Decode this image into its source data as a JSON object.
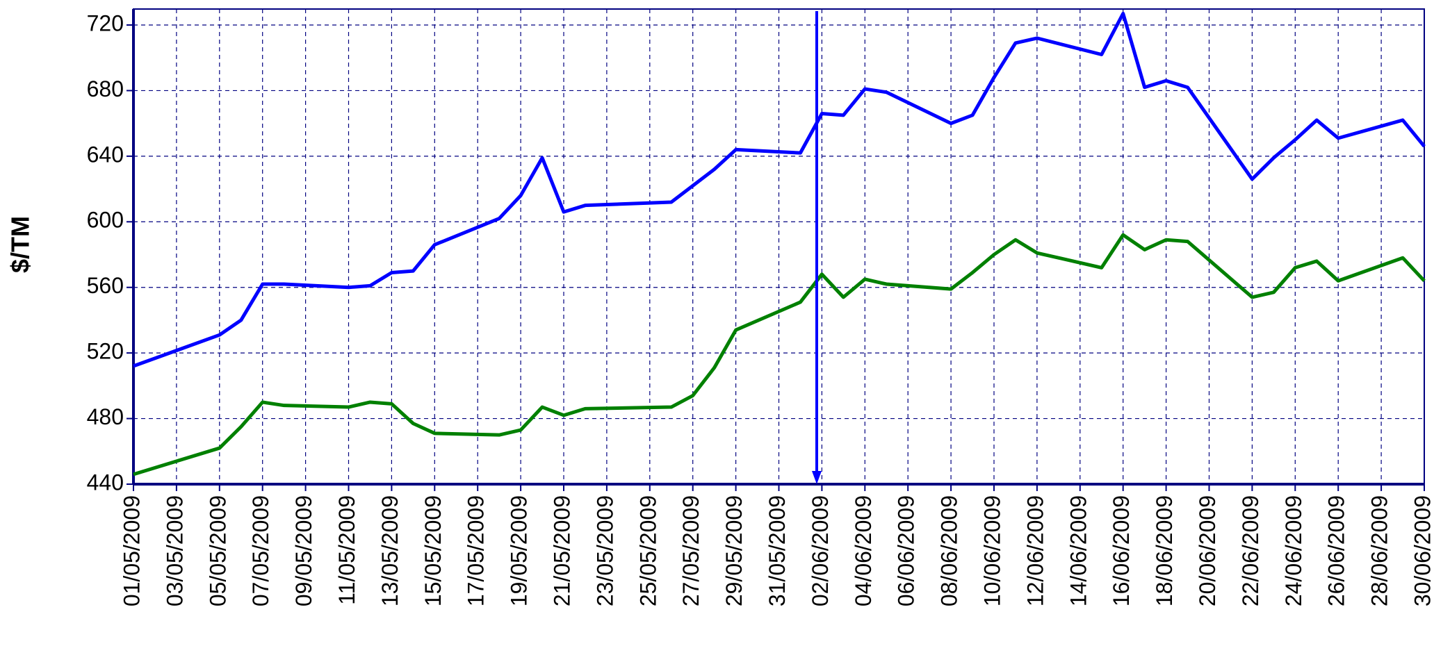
{
  "chart_data": {
    "type": "line",
    "y_label": "$/TM",
    "x": [
      "01/05/2009",
      "05/05/2009",
      "06/05/2009",
      "07/05/2009",
      "08/05/2009",
      "11/05/2009",
      "12/05/2009",
      "13/05/2009",
      "14/05/2009",
      "15/05/2009",
      "18/05/2009",
      "19/05/2009",
      "20/05/2009",
      "21/05/2009",
      "22/05/2009",
      "26/05/2009",
      "27/05/2009",
      "28/05/2009",
      "29/05/2009",
      "01/06/2009",
      "02/06/2009",
      "03/06/2009",
      "04/06/2009",
      "05/06/2009",
      "08/06/2009",
      "09/06/2009",
      "10/06/2009",
      "11/06/2009",
      "12/06/2009",
      "15/06/2009",
      "16/06/2009",
      "17/06/2009",
      "18/06/2009",
      "19/06/2009",
      "22/06/2009",
      "23/06/2009",
      "24/06/2009",
      "25/06/2009",
      "26/06/2009",
      "29/06/2009",
      "30/06/2009"
    ],
    "series": [
      {
        "color": "#0000ff",
        "values": [
          512,
          531,
          540,
          562,
          562,
          560,
          561,
          569,
          570,
          586,
          602,
          616,
          639,
          606,
          610,
          612,
          622,
          632,
          644,
          642,
          666,
          665,
          681,
          679,
          660,
          665,
          688,
          709,
          712,
          702,
          727,
          682,
          686,
          682,
          626,
          639,
          650,
          662,
          651,
          662,
          646
        ]
      },
      {
        "color": "#008000",
        "values": [
          446,
          462,
          475,
          490,
          488,
          487,
          490,
          489,
          477,
          471,
          470,
          473,
          487,
          482,
          486,
          487,
          494,
          511,
          534,
          551,
          568,
          554,
          565,
          562,
          559,
          569,
          580,
          589,
          581,
          572,
          592,
          583,
          589,
          588,
          554,
          557,
          572,
          576,
          564,
          578,
          564
        ]
      }
    ],
    "xlim": [
      "01/05/2009",
      "30/06/2009"
    ],
    "xticks": [
      "01/05/2009",
      "03/05/2009",
      "05/05/2009",
      "07/05/2009",
      "09/05/2009",
      "11/05/2009",
      "13/05/2009",
      "15/05/2009",
      "17/05/2009",
      "19/05/2009",
      "21/05/2009",
      "23/05/2009",
      "25/05/2009",
      "27/05/2009",
      "29/05/2009",
      "31/05/2009",
      "02/06/2009",
      "04/06/2009",
      "06/06/2009",
      "08/06/2009",
      "10/06/2009",
      "12/06/2009",
      "14/06/2009",
      "16/06/2009",
      "18/06/2009",
      "20/06/2009",
      "22/06/2009",
      "24/06/2009",
      "26/06/2009",
      "28/06/2009",
      "30/06/2009"
    ],
    "ylim": [
      440,
      720
    ],
    "yticks": [
      440,
      480,
      520,
      560,
      600,
      640,
      680,
      720
    ],
    "grid": true
  }
}
